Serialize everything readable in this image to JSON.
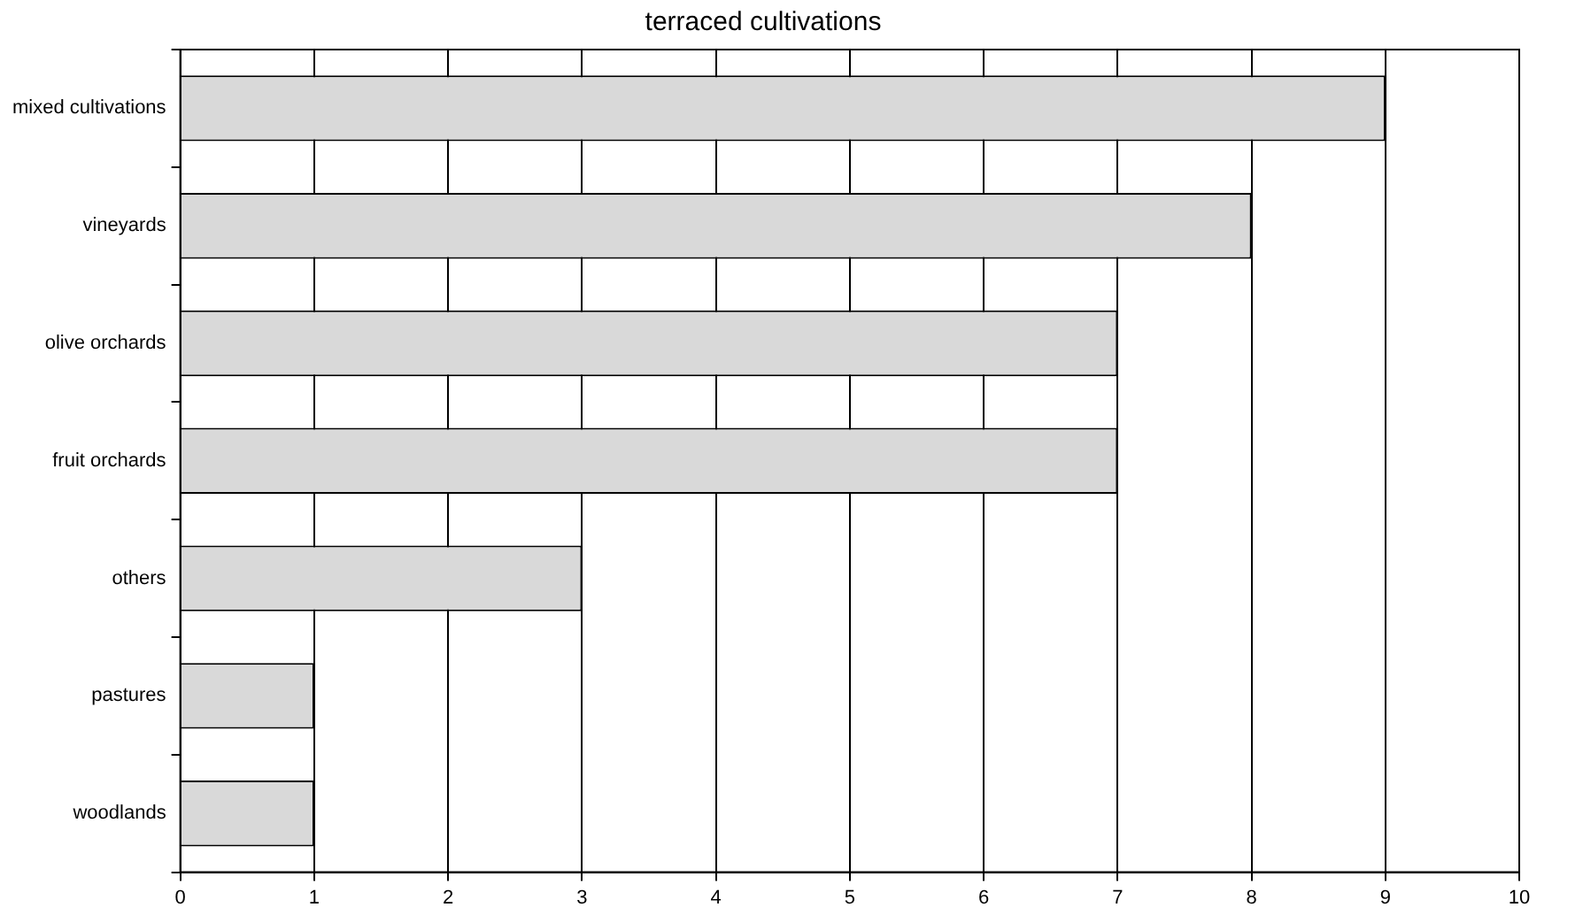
{
  "chart_data": {
    "type": "bar",
    "orientation": "horizontal",
    "title": "terraced cultivations",
    "categories": [
      "mixed cultivations",
      "vineyards",
      "olive orchards",
      "fruit orchards",
      "others",
      "pastures",
      "woodlands"
    ],
    "values": [
      9,
      8,
      7,
      7,
      3,
      1,
      1
    ],
    "color": "#d9d9d9",
    "xlim": [
      0,
      10
    ],
    "xticks": [
      0,
      1,
      2,
      3,
      4,
      5,
      6,
      7,
      8,
      9,
      10
    ],
    "grid": "x",
    "legend": false
  }
}
